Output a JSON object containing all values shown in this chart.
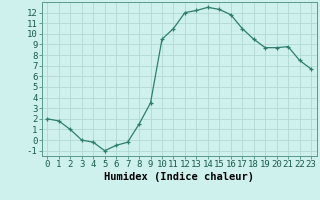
{
  "x": [
    0,
    1,
    2,
    3,
    4,
    5,
    6,
    7,
    8,
    9,
    10,
    11,
    12,
    13,
    14,
    15,
    16,
    17,
    18,
    19,
    20,
    21,
    22,
    23
  ],
  "y": [
    2,
    1.8,
    1,
    0,
    -0.2,
    -1,
    -0.5,
    -0.2,
    1.5,
    3.5,
    9.5,
    10.5,
    12,
    12.2,
    12.5,
    12.3,
    11.8,
    10.5,
    9.5,
    8.7,
    8.7,
    8.8,
    7.5,
    6.7
  ],
  "line_color": "#2e7d6e",
  "marker": "+",
  "bg_color": "#cff1ee",
  "grid_major_color": "#b0d8d4",
  "grid_minor_color": "#d5eeec",
  "xlabel": "Humidex (Indice chaleur)",
  "tick_fontsize": 6.5,
  "xlabel_fontsize": 7.5,
  "ylim": [
    -1.5,
    13.0
  ],
  "xlim": [
    -0.5,
    23.5
  ],
  "yticks": [
    -1,
    0,
    1,
    2,
    3,
    4,
    5,
    6,
    7,
    8,
    9,
    10,
    11,
    12
  ],
  "xticks": [
    0,
    1,
    2,
    3,
    4,
    5,
    6,
    7,
    8,
    9,
    10,
    11,
    12,
    13,
    14,
    15,
    16,
    17,
    18,
    19,
    20,
    21,
    22,
    23
  ]
}
